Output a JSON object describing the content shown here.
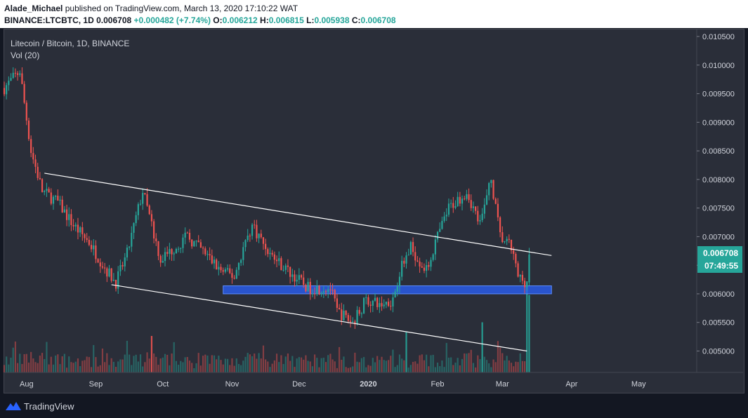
{
  "header": {
    "author": "Alade_Michael",
    "published_text": "published on TradingView.com, March 13, 2020 17:10:22 WAT",
    "symbol": "BINANCE:LTCBTC, 1D",
    "last": "0.006708",
    "change": "+0.000482 (+7.74%)",
    "o_label": "O:",
    "o_value": "0.006212",
    "h_label": "H:",
    "h_value": "0.006815",
    "l_label": "L:",
    "l_value": "0.005938",
    "c_label": "C:",
    "c_value": "0.006708"
  },
  "legend": {
    "title": "Litecoin / Bitcoin, 1D, BINANCE",
    "vol": "Vol (20)"
  },
  "price_tag": {
    "price": "0.006708",
    "countdown": "07:49:55"
  },
  "footer": {
    "brand": "TradingView"
  },
  "colors": {
    "up": "#26a69a",
    "down": "#ef5350",
    "background": "#2a2e39",
    "zone": "#2962ff",
    "trendline": "#ffffff"
  },
  "chart_data": {
    "type": "candlestick",
    "y_axis": {
      "ticks": [
        "0.010500",
        "0.010000",
        "0.009500",
        "0.009000",
        "0.008500",
        "0.008000",
        "0.007500",
        "0.007000",
        "0.006500",
        "0.006000",
        "0.005500",
        "0.005000"
      ],
      "range": [
        0.00465,
        0.01065
      ]
    },
    "x_axis": {
      "ticks": [
        {
          "label": "Aug",
          "date": "2019-08-01"
        },
        {
          "label": "Sep",
          "date": "2019-09-01"
        },
        {
          "label": "Oct",
          "date": "2019-10-01"
        },
        {
          "label": "Nov",
          "date": "2019-11-01"
        },
        {
          "label": "Dec",
          "date": "2019-12-01"
        },
        {
          "label": "2020",
          "date": "2020-01-01",
          "bold": true
        },
        {
          "label": "Feb",
          "date": "2020-02-01"
        },
        {
          "label": "Mar",
          "date": "2020-03-01"
        },
        {
          "label": "Apr",
          "date": "2020-04-01"
        },
        {
          "label": "May",
          "date": "2020-05-01"
        }
      ],
      "range": [
        "2019-07-22",
        "2020-05-27"
      ]
    },
    "price_anchors": [
      [
        "2019-07-22",
        0.0096
      ],
      [
        "2019-07-29",
        0.0099
      ],
      [
        "2019-08-03",
        0.0085
      ],
      [
        "2019-08-08",
        0.0078
      ],
      [
        "2019-08-15",
        0.0076
      ],
      [
        "2019-08-22",
        0.0072
      ],
      [
        "2019-08-29",
        0.0069
      ],
      [
        "2019-09-06",
        0.0064
      ],
      [
        "2019-09-10",
        0.0062
      ],
      [
        "2019-09-15",
        0.0067
      ],
      [
        "2019-09-22",
        0.0078
      ],
      [
        "2019-09-30",
        0.0066
      ],
      [
        "2019-10-06",
        0.0068
      ],
      [
        "2019-10-12",
        0.007
      ],
      [
        "2019-10-20",
        0.0067
      ],
      [
        "2019-10-27",
        0.0064
      ],
      [
        "2019-11-02",
        0.0063
      ],
      [
        "2019-11-06",
        0.0068
      ],
      [
        "2019-11-10",
        0.0072
      ],
      [
        "2019-11-18",
        0.0067
      ],
      [
        "2019-11-26",
        0.0064
      ],
      [
        "2019-12-05",
        0.0061
      ],
      [
        "2019-12-15",
        0.0061
      ],
      [
        "2019-12-18",
        0.0057
      ],
      [
        "2019-12-25",
        0.0055
      ],
      [
        "2019-12-31",
        0.0059
      ],
      [
        "2020-01-06",
        0.0058
      ],
      [
        "2020-01-12",
        0.0059
      ],
      [
        "2020-01-15",
        0.0064
      ],
      [
        "2020-01-20",
        0.0068
      ],
      [
        "2020-01-27",
        0.0064
      ],
      [
        "2020-01-31",
        0.0069
      ],
      [
        "2020-02-06",
        0.0075
      ],
      [
        "2020-02-14",
        0.0078
      ],
      [
        "2020-02-20",
        0.0072
      ],
      [
        "2020-02-25",
        0.008
      ],
      [
        "2020-02-29",
        0.007
      ],
      [
        "2020-03-05",
        0.0068
      ],
      [
        "2020-03-08",
        0.0063
      ],
      [
        "2020-03-12",
        0.0062
      ],
      [
        "2020-03-13",
        0.0067
      ]
    ],
    "volume_spikes": [
      [
        "2020-03-12",
        1.0
      ],
      [
        "2020-03-13",
        0.85
      ],
      [
        "2020-01-18",
        0.45
      ],
      [
        "2020-02-21",
        0.55
      ],
      [
        "2019-09-26",
        0.4
      ]
    ],
    "trendlines": [
      {
        "from": [
          "2019-08-09",
          0.00811
        ],
        "to": [
          "2020-03-23",
          0.00667
        ]
      },
      {
        "from": [
          "2019-09-08",
          0.00616
        ],
        "to": [
          "2020-03-12",
          0.005
        ]
      }
    ],
    "support_zone": {
      "from": "2019-10-28",
      "to": "2020-03-23",
      "low": 0.006,
      "high": 0.00614
    },
    "last_price": 0.006708
  }
}
